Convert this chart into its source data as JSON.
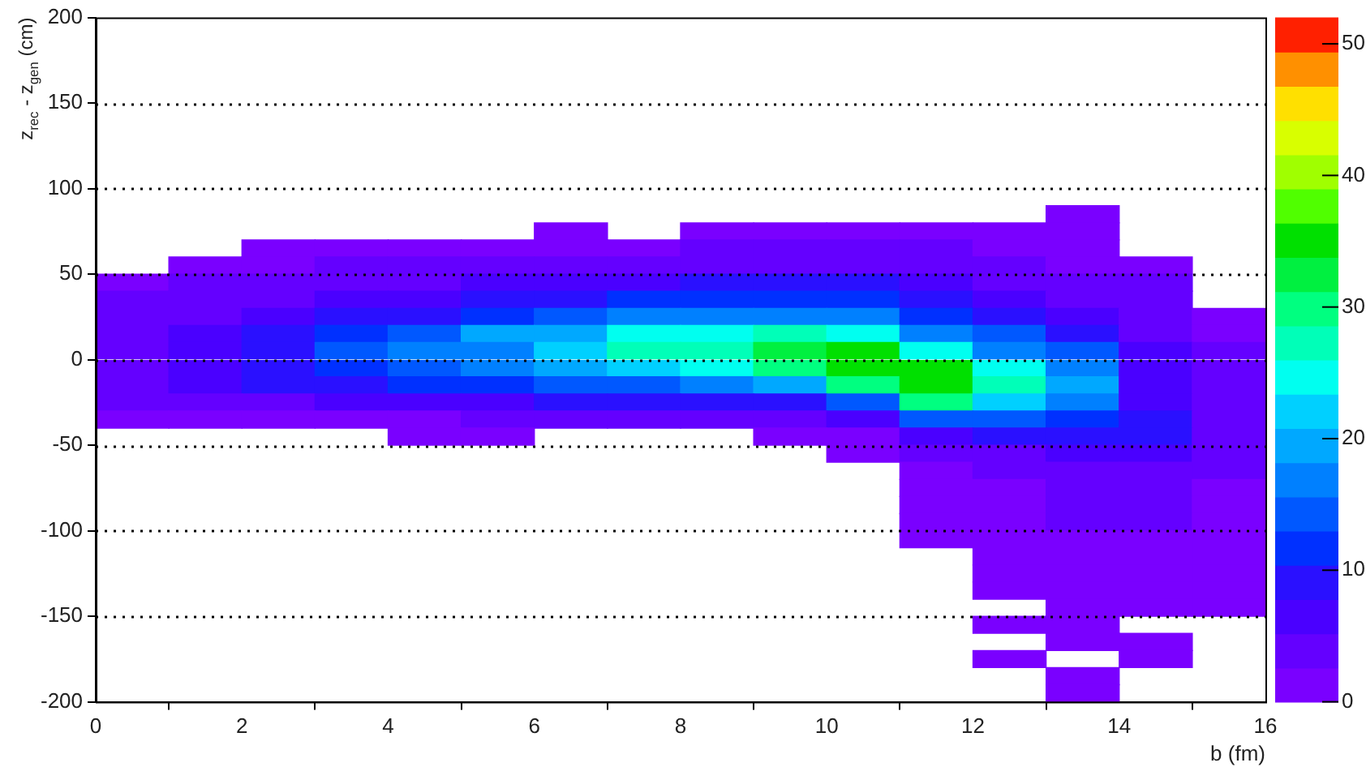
{
  "chart_data": {
    "type": "heatmap",
    "xlabel": "b (fm)",
    "ylabel": "z$_{rec}$ - z$_{gen}$ (cm)",
    "xlim": [
      0,
      16
    ],
    "xticks": [
      0,
      2,
      4,
      6,
      8,
      10,
      12,
      14,
      16
    ],
    "ylim": [
      -200,
      200
    ],
    "yticks": [
      -200,
      -150,
      -100,
      -50,
      0,
      50,
      100,
      150,
      200
    ],
    "grid": "y",
    "clim": [
      0,
      52
    ],
    "cticks": [
      0,
      10,
      20,
      30,
      40,
      50
    ],
    "colors": [
      "#7a00ff",
      "#6400ff",
      "#4a00ff",
      "#2a10ff",
      "#0030ff",
      "#0058ff",
      "#0080ff",
      "#00a8ff",
      "#00d0ff",
      "#00fff0",
      "#00ffb8",
      "#00ff80",
      "#00f040",
      "#00e000",
      "#50ff00",
      "#a0ff00",
      "#d8ff00",
      "#ffe000",
      "#ff9000",
      "#ff2000"
    ],
    "x": [
      0.5,
      1.5,
      2.5,
      3.5,
      4.5,
      5.5,
      6.5,
      7.5,
      8.5,
      9.5,
      10.5,
      11.5,
      12.5,
      13.5,
      14.5,
      15.5
    ],
    "y": [
      85,
      75,
      65,
      55,
      45,
      35,
      25,
      15,
      5,
      -5,
      -15,
      -25,
      -35,
      -45,
      -55,
      -65,
      -75,
      -85,
      -95,
      -105,
      -115,
      -125,
      -135,
      -145,
      -155,
      -165,
      -175,
      -185,
      -195
    ],
    "cells": [
      [
        null,
        null,
        null,
        null,
        null,
        null,
        null,
        null,
        null,
        null,
        null,
        null,
        null,
        1,
        null,
        null
      ],
      [
        null,
        null,
        null,
        null,
        null,
        null,
        1,
        null,
        1,
        1,
        2,
        2,
        1,
        1,
        null,
        null
      ],
      [
        null,
        null,
        1,
        1,
        1,
        1,
        2,
        2,
        3,
        3,
        3,
        3,
        2,
        2,
        null,
        null
      ],
      [
        null,
        1,
        2,
        3,
        3,
        4,
        4,
        4,
        5,
        5,
        5,
        4,
        3,
        2,
        1,
        null
      ],
      [
        1,
        3,
        4,
        5,
        5,
        6,
        6,
        7,
        8,
        8,
        8,
        6,
        5,
        4,
        3,
        null
      ],
      [
        3,
        4,
        5,
        7,
        7,
        9,
        10,
        11,
        12,
        12,
        11,
        9,
        6,
        5,
        4,
        null
      ],
      [
        3,
        5,
        6,
        9,
        10,
        12,
        14,
        16,
        18,
        18,
        16,
        12,
        9,
        7,
        4,
        1
      ],
      [
        4,
        6,
        8,
        11,
        14,
        19,
        20,
        24,
        24,
        26,
        24,
        18,
        14,
        9,
        5,
        2
      ],
      [
        5,
        7,
        9,
        13,
        16,
        18,
        22,
        26,
        28,
        32,
        34,
        24,
        18,
        14,
        6,
        3
      ],
      [
        5,
        7,
        10,
        12,
        14,
        16,
        19,
        22,
        25,
        30,
        36,
        34,
        24,
        18,
        6,
        3
      ],
      [
        4,
        6,
        8,
        9,
        11,
        12,
        13,
        15,
        17,
        20,
        30,
        36,
        28,
        20,
        7,
        3
      ],
      [
        3,
        4,
        5,
        6,
        6,
        7,
        8,
        8,
        9,
        10,
        14,
        30,
        22,
        16,
        7,
        3
      ],
      [
        1,
        2,
        2,
        2,
        2,
        3,
        3,
        3,
        3,
        4,
        6,
        14,
        14,
        12,
        8,
        3
      ],
      [
        null,
        null,
        null,
        null,
        1,
        1,
        null,
        null,
        null,
        1,
        2,
        6,
        8,
        8,
        9,
        3
      ],
      [
        null,
        null,
        null,
        null,
        null,
        null,
        null,
        null,
        null,
        null,
        1,
        3,
        4,
        6,
        7,
        3
      ],
      [
        null,
        null,
        null,
        null,
        null,
        null,
        null,
        null,
        null,
        null,
        null,
        2,
        3,
        5,
        5,
        3
      ],
      [
        null,
        null,
        null,
        null,
        null,
        null,
        null,
        null,
        null,
        null,
        null,
        1,
        2,
        4,
        4,
        2
      ],
      [
        null,
        null,
        null,
        null,
        null,
        null,
        null,
        null,
        null,
        null,
        null,
        1,
        2,
        3,
        3,
        2
      ],
      [
        null,
        null,
        null,
        null,
        null,
        null,
        null,
        null,
        null,
        null,
        null,
        1,
        2,
        3,
        3,
        2
      ],
      [
        null,
        null,
        null,
        null,
        null,
        null,
        null,
        null,
        null,
        null,
        null,
        1,
        1,
        2,
        2,
        1
      ],
      [
        null,
        null,
        null,
        null,
        null,
        null,
        null,
        null,
        null,
        null,
        null,
        null,
        1,
        2,
        2,
        2
      ],
      [
        null,
        null,
        null,
        null,
        null,
        null,
        null,
        null,
        null,
        null,
        null,
        null,
        1,
        2,
        2,
        2
      ],
      [
        null,
        null,
        null,
        null,
        null,
        null,
        null,
        null,
        null,
        null,
        null,
        null,
        1,
        1,
        1,
        1
      ],
      [
        null,
        null,
        null,
        null,
        null,
        null,
        null,
        null,
        null,
        null,
        null,
        null,
        null,
        1,
        1,
        1
      ],
      [
        null,
        null,
        null,
        null,
        null,
        null,
        null,
        null,
        null,
        null,
        null,
        null,
        1,
        1,
        null,
        null
      ],
      [
        null,
        null,
        null,
        null,
        null,
        null,
        null,
        null,
        null,
        null,
        null,
        null,
        null,
        1,
        1,
        null
      ],
      [
        null,
        null,
        null,
        null,
        null,
        null,
        null,
        null,
        null,
        null,
        null,
        null,
        1,
        null,
        1,
        null
      ],
      [
        null,
        null,
        null,
        null,
        null,
        null,
        null,
        null,
        null,
        null,
        null,
        null,
        null,
        1,
        null,
        null
      ],
      [
        null,
        null,
        null,
        null,
        null,
        null,
        null,
        null,
        null,
        null,
        null,
        null,
        null,
        1,
        null,
        null
      ]
    ]
  }
}
